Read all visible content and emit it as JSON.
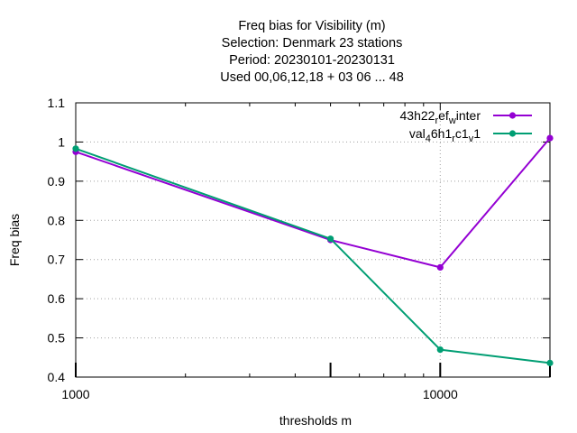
{
  "chart_data": {
    "type": "line",
    "title_lines": [
      "Freq bias  for Visibility (m)",
      "Selection: Denmark      23 stations",
      "Period: 20230101-20230131",
      "Used  00,06,12,18  + 03 06 ... 48"
    ],
    "xlabel": "thresholds m",
    "ylabel": "Freq bias",
    "x_scale": "log",
    "xlim": [
      1000,
      20000
    ],
    "ylim": [
      0.4,
      1.1
    ],
    "x_ticks": [
      {
        "value": 1000,
        "label": "1000"
      },
      {
        "value": 10000,
        "label": "10000"
      }
    ],
    "y_ticks": [
      {
        "value": 0.4,
        "label": "0.4"
      },
      {
        "value": 0.5,
        "label": "0.5"
      },
      {
        "value": 0.6,
        "label": "0.6"
      },
      {
        "value": 0.7,
        "label": "0.7"
      },
      {
        "value": 0.8,
        "label": "0.8"
      },
      {
        "value": 0.9,
        "label": "0.9"
      },
      {
        "value": 1.0,
        "label": "1"
      },
      {
        "value": 1.1,
        "label": "1.1"
      }
    ],
    "legend_position": "top-right",
    "series": [
      {
        "name": "43h22_ref_winter",
        "legend_parts": [
          {
            "text": "43h22",
            "sub": false
          },
          {
            "text": "r",
            "sub": true
          },
          {
            "text": "ef",
            "sub": false
          },
          {
            "text": "w",
            "sub": true
          },
          {
            "text": "inter",
            "sub": false
          }
        ],
        "color": "#9400d3",
        "x": [
          1000,
          5000,
          10000,
          20000
        ],
        "y": [
          0.975,
          0.75,
          0.68,
          1.01
        ]
      },
      {
        "name": "val_46h1_rc1_v1",
        "legend_parts": [
          {
            "text": "val",
            "sub": false
          },
          {
            "text": "4",
            "sub": true
          },
          {
            "text": "6h1",
            "sub": false
          },
          {
            "text": "r",
            "sub": true
          },
          {
            "text": "c1",
            "sub": false
          },
          {
            "text": "v",
            "sub": true
          },
          {
            "text": "1",
            "sub": false
          }
        ],
        "color": "#009e73",
        "x": [
          1000,
          5000,
          10000,
          20000
        ],
        "y": [
          0.983,
          0.753,
          0.47,
          0.436
        ]
      }
    ]
  }
}
